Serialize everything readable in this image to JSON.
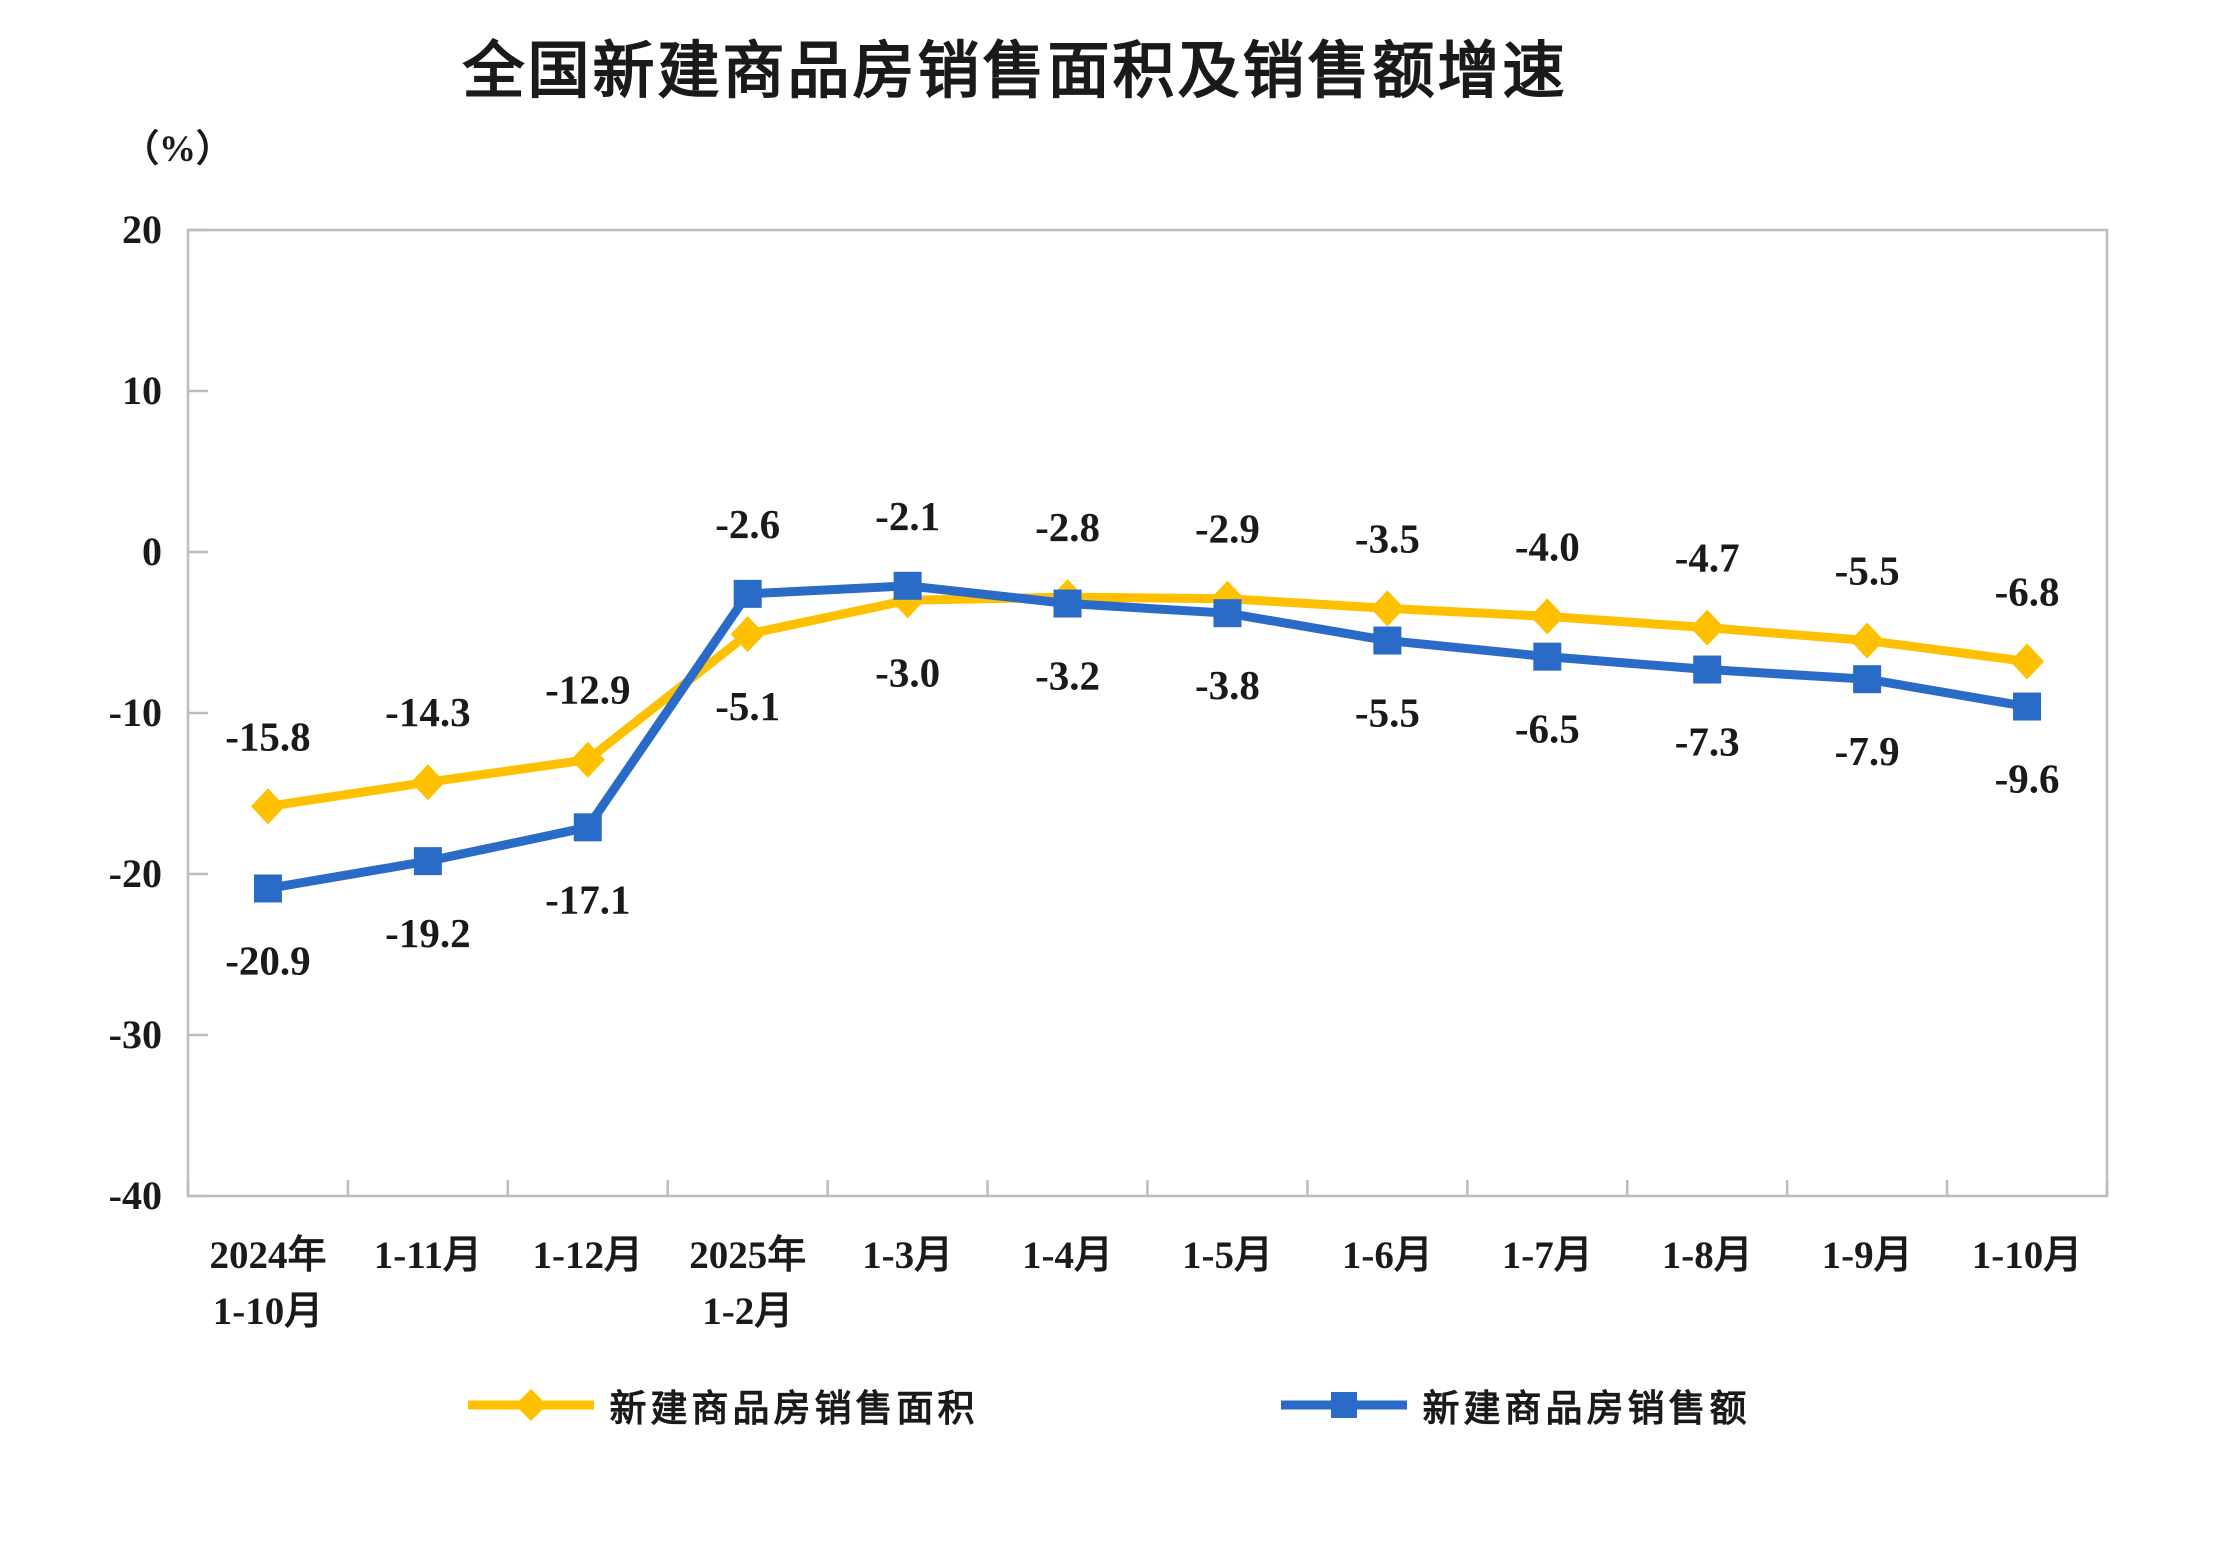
{
  "chart_data": {
    "type": "line",
    "title": "全国新建商品房销售面积及销售额增速",
    "y_unit_label": "（%）",
    "categories": [
      "2024年\n1-10月",
      "1-11月",
      "1-12月",
      "2025年\n1-2月",
      "1-3月",
      "1-4月",
      "1-5月",
      "1-6月",
      "1-7月",
      "1-8月",
      "1-9月",
      "1-10月"
    ],
    "series": [
      {
        "name": "新建商品房销售面积",
        "color": "#FFC000",
        "marker": "diamond",
        "values": [
          -15.8,
          -14.3,
          -12.9,
          -5.1,
          -3.0,
          -2.8,
          -2.9,
          -3.5,
          -4.0,
          -4.7,
          -5.5,
          -6.8
        ],
        "labels": [
          "-15.8",
          "-14.3",
          "-12.9",
          "-5.1",
          "-3.0",
          "-2.8",
          "-2.9",
          "-3.5",
          "-4.0",
          "-4.7",
          "-5.5",
          "-6.8"
        ],
        "label_positions": [
          "above",
          "above",
          "above",
          "below",
          "below",
          "above",
          "above",
          "above",
          "above",
          "above",
          "above",
          "above"
        ]
      },
      {
        "name": "新建商品房销售额",
        "color": "#2B6BC8",
        "marker": "square",
        "values": [
          -20.9,
          -19.2,
          -17.1,
          -2.6,
          -2.1,
          -3.2,
          -3.8,
          -5.5,
          -6.5,
          -7.3,
          -7.9,
          -9.6
        ],
        "labels": [
          "-20.9",
          "-19.2",
          "-17.1",
          "-2.6",
          "-2.1",
          "-3.2",
          "-3.8",
          "-5.5",
          "-6.5",
          "-7.3",
          "-7.9",
          "-9.6"
        ],
        "label_positions": [
          "below",
          "below",
          "below",
          "above",
          "above",
          "below",
          "below",
          "below",
          "below",
          "below",
          "below",
          "below"
        ]
      }
    ],
    "y_axis": {
      "min": -40,
      "max": 20,
      "step": 10,
      "tick_labels": [
        "20",
        "10",
        "0",
        "-10",
        "-20",
        "-30",
        "-40"
      ]
    },
    "legend_position": "bottom",
    "grid": "off",
    "axis_color": "#BDBDBD",
    "text_color": "#1a1a1a"
  }
}
